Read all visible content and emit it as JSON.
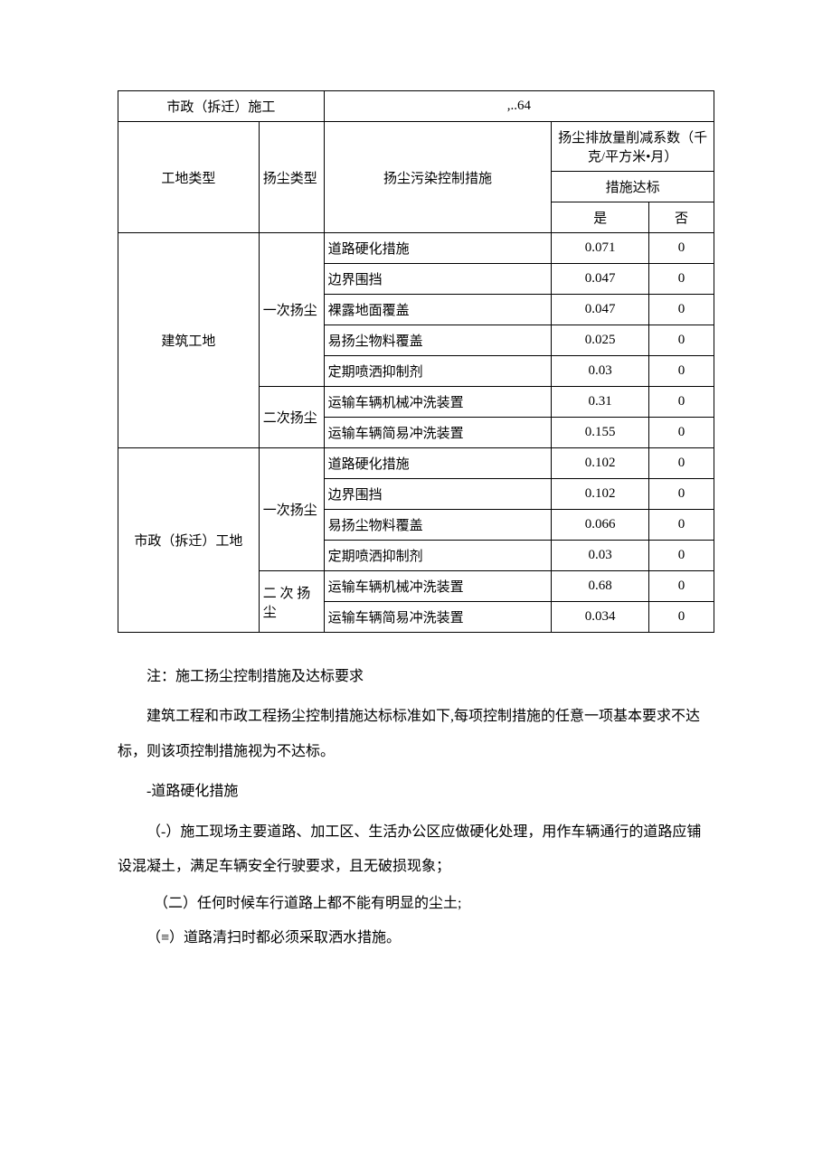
{
  "table": {
    "header_row": {
      "site_construction": "市政（拆迁）施工",
      "header_value": ",..64"
    },
    "columns": {
      "site_type": "工地类型",
      "dust_type": "扬尘类型",
      "control_measure": "扬尘污染控制措施",
      "reduction_header": "扬尘排放量削减系数（千克/平方米•月）",
      "standard_label": "措施达标",
      "yes": "是",
      "no": "否"
    },
    "site1": {
      "name": "建筑工地",
      "dust1": "一次扬尘",
      "dust2": "二次扬尘",
      "rows": [
        {
          "measure": "道路硬化措施",
          "yes": "0.071",
          "no": "0"
        },
        {
          "measure": "边界围挡",
          "yes": "0.047",
          "no": "0"
        },
        {
          "measure": "裸露地面覆盖",
          "yes": "0.047",
          "no": "0"
        },
        {
          "measure": "易扬尘物料覆盖",
          "yes": "0.025",
          "no": "0"
        },
        {
          "measure": "定期喷洒抑制剂",
          "yes": "0.03",
          "no": "0"
        },
        {
          "measure": "运输车辆机械冲洗装置",
          "yes": "0.31",
          "no": "0"
        },
        {
          "measure": "运输车辆简易冲洗装置",
          "yes": "0.155",
          "no": "0"
        }
      ]
    },
    "site2": {
      "name": "市政（拆迁）工地",
      "dust1": "一次扬尘",
      "dust2": "二 次 扬尘",
      "rows": [
        {
          "measure": "道路硬化措施",
          "yes": "0.102",
          "no": "0"
        },
        {
          "measure": "边界围挡",
          "yes": "0.102",
          "no": "0"
        },
        {
          "measure": "易扬尘物料覆盖",
          "yes": "0.066",
          "no": "0"
        },
        {
          "measure": "定期喷洒抑制剂",
          "yes": "0.03",
          "no": "0"
        },
        {
          "measure": "运输车辆机械冲洗装置",
          "yes": "0.68",
          "no": "0"
        },
        {
          "measure": "运输车辆简易冲洗装置",
          "yes": "0.034",
          "no": "0"
        }
      ]
    }
  },
  "paragraphs": {
    "note": "注：施工扬尘控制措施及达标要求",
    "p1": "建筑工程和市政工程扬尘控制措施达标标准如下,每项控制措施的任意一项基本要求不达标，则该项控制措施视为不达标。",
    "h1": "-道路硬化措施",
    "item1": "（-）施工现场主要道路、加工区、生活办公区应做硬化处理，用作车辆通行的道路应铺设混凝土，满足车辆安全行驶要求，且无破损现象；",
    "item2": "（二）任何时候车行道路上都不能有明显的尘土;",
    "item3": "（≡）道路清扫时都必须采取洒水措施。"
  }
}
